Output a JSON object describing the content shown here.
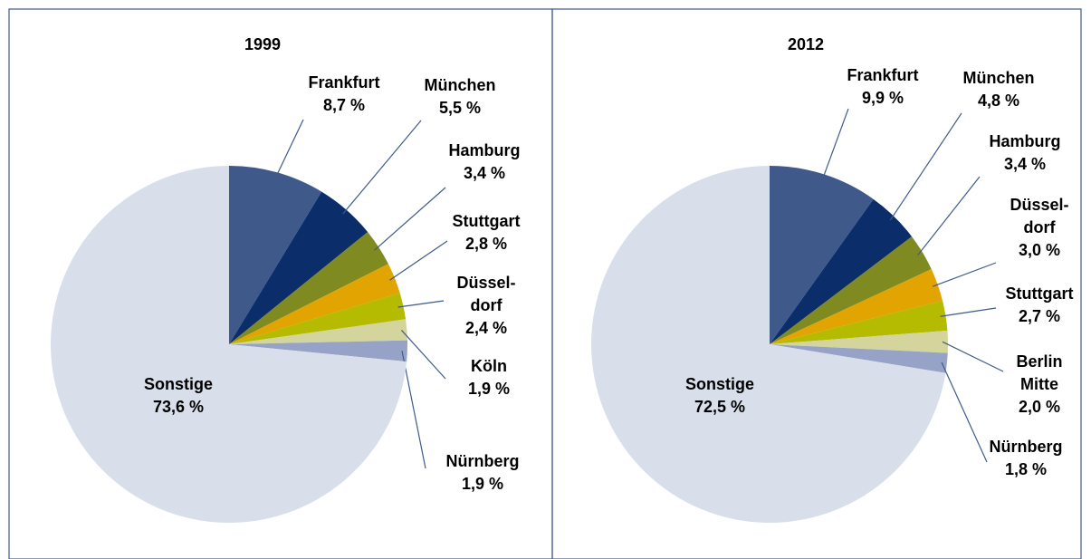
{
  "chart_data": [
    {
      "type": "pie",
      "title": "1999",
      "categories": [
        "Frankfurt",
        "München",
        "Hamburg",
        "Stuttgart",
        "Düssel-dorf",
        "Köln",
        "Nürnberg",
        "Sonstige"
      ],
      "values": [
        8.7,
        5.5,
        3.4,
        2.8,
        2.4,
        1.9,
        1.9,
        73.6
      ],
      "value_labels": [
        "8,7 %",
        "5,5 %",
        "3,4 %",
        "2,8 %",
        "2,4 %",
        "1,9 %",
        "1,9 %",
        "73,6 %"
      ],
      "colors": [
        "#3f5a8a",
        "#0b2e6a",
        "#7f8a20",
        "#e1a400",
        "#b4bb00",
        "#d3d59c",
        "#97a3c6",
        "#d8dfeb"
      ]
    },
    {
      "type": "pie",
      "title": "2012",
      "categories": [
        "Frankfurt",
        "München",
        "Hamburg",
        "Düssel-dorf",
        "Stuttgart",
        "Berlin Mitte",
        "Nürnberg",
        "Sonstige"
      ],
      "values": [
        9.9,
        4.8,
        3.4,
        3.0,
        2.7,
        2.0,
        1.8,
        72.5
      ],
      "value_labels": [
        "9,9 %",
        "4,8 %",
        "3,4 %",
        "3,0 %",
        "2,7 %",
        "2,0 %",
        "1,8 %",
        "72,5 %"
      ],
      "colors": [
        "#3f5a8a",
        "#0b2e6a",
        "#7f8a20",
        "#e1a400",
        "#b4bb00",
        "#d3d59c",
        "#97a3c6",
        "#d8dfeb"
      ]
    }
  ]
}
